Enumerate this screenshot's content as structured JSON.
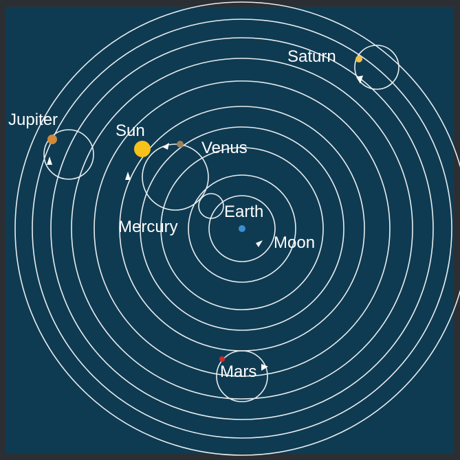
{
  "nodes": [
    {
      "label": "Saturn"
    },
    {
      "label": "Jupiter"
    },
    {
      "label": "Sun"
    },
    {
      "label": "Venus"
    },
    {
      "label": "Earth"
    },
    {
      "label": "Mercury"
    },
    {
      "label": "Moon"
    },
    {
      "label": "Mars"
    }
  ]
}
